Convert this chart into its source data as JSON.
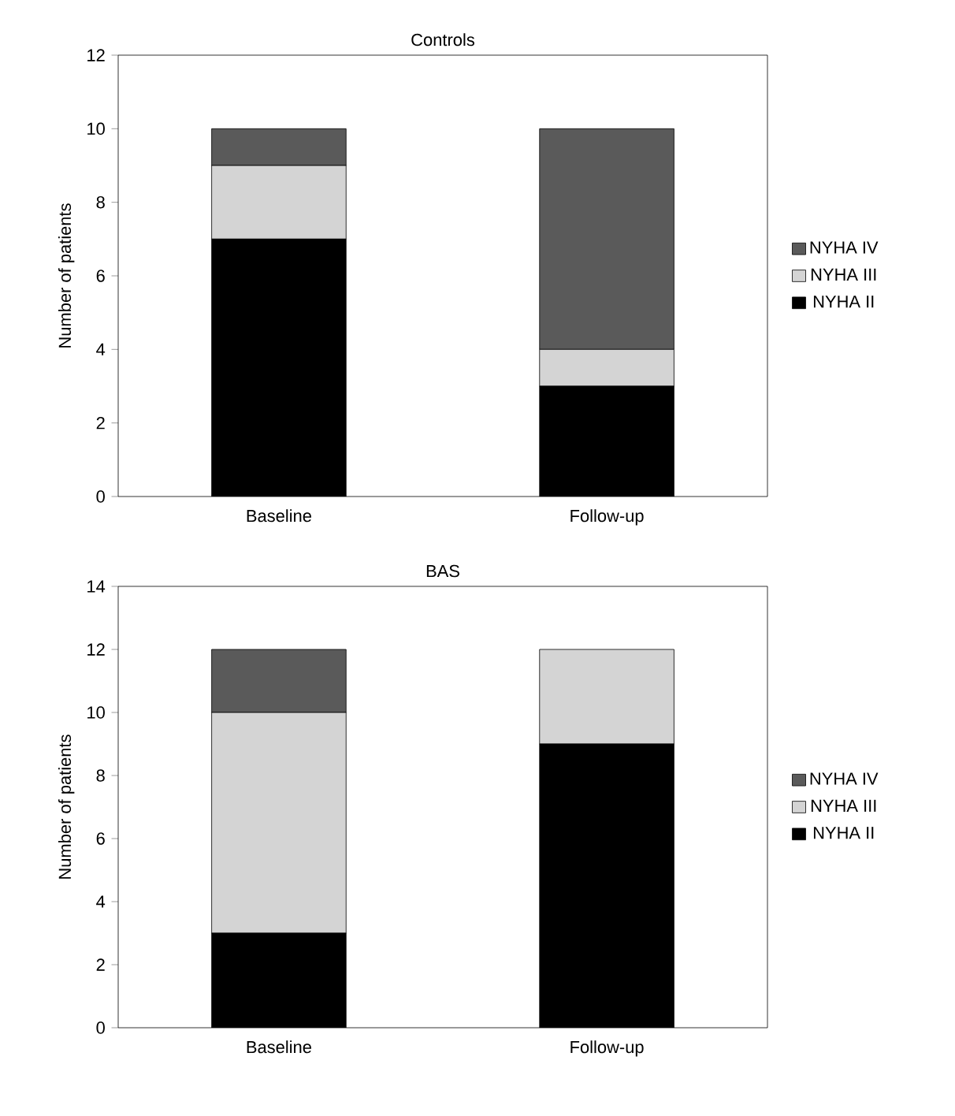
{
  "chart_data": [
    {
      "type": "bar",
      "title": "Controls",
      "ylabel": "Number of patients",
      "categories": [
        "Baseline",
        "Follow-up"
      ],
      "stacked": true,
      "ylim": [
        0,
        12
      ],
      "yticks": [
        0,
        2,
        4,
        6,
        8,
        10,
        12
      ],
      "legend": "right",
      "series": [
        {
          "name": "NYHA II",
          "color": "#000000",
          "values": [
            7,
            3
          ]
        },
        {
          "name": "NYHA III",
          "color": "#d4d4d4",
          "values": [
            2,
            1
          ]
        },
        {
          "name": "NYHA IV",
          "color": "#5a5a5a",
          "values": [
            1,
            6
          ]
        }
      ]
    },
    {
      "type": "bar",
      "title": "BAS",
      "ylabel": "Number of patients",
      "categories": [
        "Baseline",
        "Follow-up"
      ],
      "stacked": true,
      "ylim": [
        0,
        14
      ],
      "yticks": [
        0,
        2,
        4,
        6,
        8,
        10,
        12,
        14
      ],
      "legend": "right",
      "series": [
        {
          "name": "NYHA II",
          "color": "#000000",
          "values": [
            3,
            9
          ]
        },
        {
          "name": "NYHA III",
          "color": "#d4d4d4",
          "values": [
            7,
            3
          ]
        },
        {
          "name": "NYHA IV",
          "color": "#5a5a5a",
          "values": [
            2,
            0
          ]
        }
      ]
    }
  ]
}
